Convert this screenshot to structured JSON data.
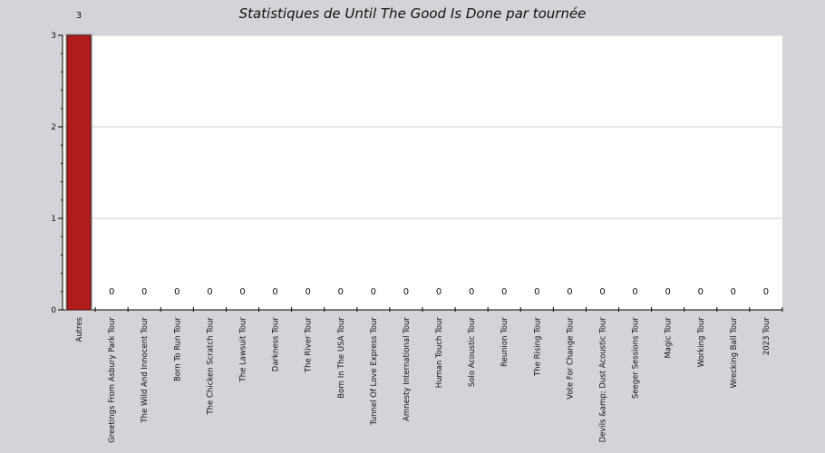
{
  "chart_data": {
    "type": "bar",
    "title": "Statistiques de Until The Good Is Done par tournée",
    "xlabel": "",
    "ylabel": "",
    "ylim": [
      0,
      3
    ],
    "yticks": [
      0,
      1,
      2,
      3
    ],
    "grid": true,
    "categories": [
      "Autres",
      "Greetings From Asbury Park Tour",
      "The Wild And Innocent Tour",
      "Born To Run Tour",
      "The Chicken Scratch Tour",
      "The Lawsuit Tour",
      "Darkness Tour",
      "The River Tour",
      "Born In The USA Tour",
      "Tunnel Of Love Express Tour",
      "Amnesty International Tour",
      "Human Touch Tour",
      "Solo Acoustic Tour",
      "Reunion Tour",
      "The Rising Tour",
      "Vote For Change Tour",
      "Devils &amp; Dust Acoustic Tour",
      "Seeger Sessions Tour",
      "Magic Tour",
      "Working Tour",
      "Wrecking Ball Tour",
      "2023 Tour"
    ],
    "values": [
      3,
      0,
      0,
      0,
      0,
      0,
      0,
      0,
      0,
      0,
      0,
      0,
      0,
      0,
      0,
      0,
      0,
      0,
      0,
      0,
      0,
      0
    ],
    "data_labels": [
      "3",
      "0",
      "0",
      "0",
      "0",
      "0",
      "0",
      "0",
      "0",
      "0",
      "0",
      "0",
      "0",
      "0",
      "0",
      "0",
      "0",
      "0",
      "0",
      "0",
      "0",
      "0"
    ],
    "colors": {
      "bar": "#b01c1c",
      "bar_border": "#3a0a0a",
      "plot_bg": "#ffffff",
      "page_bg": "#d4d3d8",
      "grid": "#d0d0d0"
    }
  }
}
